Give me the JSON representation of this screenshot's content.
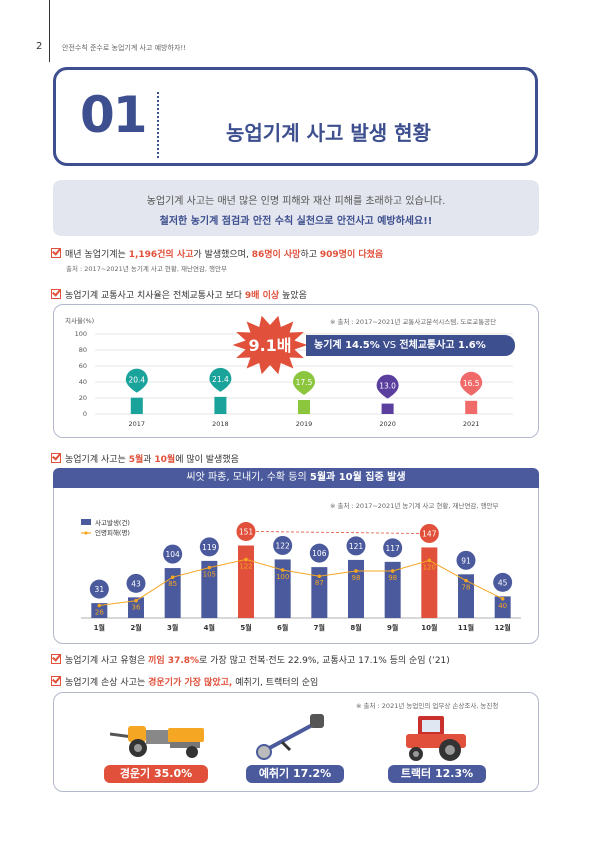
{
  "header": {
    "page_number": "2",
    "title": "안전수칙 준수로 농업기계 사고 예방하자!!"
  },
  "section": {
    "number": "01",
    "title": "농업기계 사고 발생 현황"
  },
  "intro": {
    "line1": "농업기계 사고는 매년 많은 인명 피해와 재산 피해를 초래하고 있습니다.",
    "line2": "철저한 농기계 점검과 안전 수칙 실천으로 안전사고 예방하세요!!"
  },
  "bullet1": {
    "p1": "매년 농업기계는 ",
    "h1": "1,196건의 사고",
    "p2": "가 발생했으며, ",
    "h2": "86명이 사망",
    "p3": "하고 ",
    "h3": "909명이 다쳤음",
    "source": "출처 : 2017~2021년 농기계 사고 현황, 재난연감, 행안부"
  },
  "bullet2": {
    "p1": "농업기계 교통사고 치사율은 전체교통사고 보다 ",
    "h1": "9배 이상",
    "p2": " 높았음"
  },
  "chart1": {
    "source": "※ 출처 : 2017~2021년 교통사고분석시스템, 도로교통공단",
    "starburst": "9.1배",
    "banner": {
      "a": "농기계 14.5%",
      "vs": " VS ",
      "b": "전체교통사고 1.6%"
    },
    "colors": {
      "star": "#e0503a",
      "banner": "#3d4f8f"
    }
  },
  "bullet3": {
    "p1": "농업기계 사고는 ",
    "h1": "5월",
    "p2": "과 ",
    "h2": "10월",
    "p3": "에 많이 발생했음"
  },
  "chart2": {
    "banner": {
      "p1": "씨앗 파종, 모내기, 수확 등의 ",
      "h1": "5월과 10월 집중 발생"
    },
    "source": "※ 출처 : 2017~2021년 농기계 사고 현황, 재난연감, 행안부"
  },
  "bullet4": {
    "p1": "농업기계 사고 유형은 ",
    "h1": "끼임 37.8%",
    "p2": "로 가장 많고 전복·전도 22.9%, 교통사고 17.1% 등의 순임 (’21)"
  },
  "bullet5": {
    "p1": "농업기계 손상 사고는 ",
    "h1": "경운기가 가장 많았고,",
    "p2": " 예취기, 트랙터의 순임"
  },
  "machines": {
    "source": "※ 출처 : 2021년 농업인의 업무상 손상조사, 농진청",
    "items": [
      {
        "label": "경운기 35.0%",
        "icon": "power-tiller-icon",
        "color": "#e0503a"
      },
      {
        "label": "예취기 17.2%",
        "icon": "brush-cutter-icon",
        "color": "#4a5a9c"
      },
      {
        "label": "트랙터 12.3%",
        "icon": "tractor-icon",
        "color": "#4a5a9c"
      }
    ]
  },
  "chart_data": [
    {
      "type": "bar",
      "ylabel": "치사율(%)",
      "ylim": [
        0,
        100
      ],
      "yticks": [
        0,
        20,
        40,
        60,
        80,
        100
      ],
      "categories": [
        "2017",
        "2018",
        "2019",
        "2020",
        "2021"
      ],
      "values": [
        20.4,
        21.4,
        17.5,
        13.0,
        16.5
      ],
      "colors": [
        "#1aa39a",
        "#1aa39a",
        "#8cc63f",
        "#5a3f9e",
        "#f06a6a"
      ],
      "grid": true
    },
    {
      "type": "bar",
      "categories": [
        "1월",
        "2월",
        "3월",
        "4월",
        "5월",
        "6월",
        "7월",
        "8월",
        "9월",
        "10월",
        "11월",
        "12월"
      ],
      "series": [
        {
          "name": "사고발생(건)",
          "values": [
            31,
            43,
            104,
            119,
            151,
            122,
            106,
            121,
            117,
            147,
            91,
            45
          ],
          "color": "#4a5a9c",
          "highlight_color": "#e0503a",
          "highlight": [
            4,
            9
          ]
        },
        {
          "name": "인명피해(명)",
          "values": [
            26,
            36,
            85,
            105,
            122,
            100,
            87,
            98,
            98,
            120,
            78,
            40
          ],
          "color": "#f5a623"
        }
      ],
      "legend": "top-left"
    }
  ]
}
